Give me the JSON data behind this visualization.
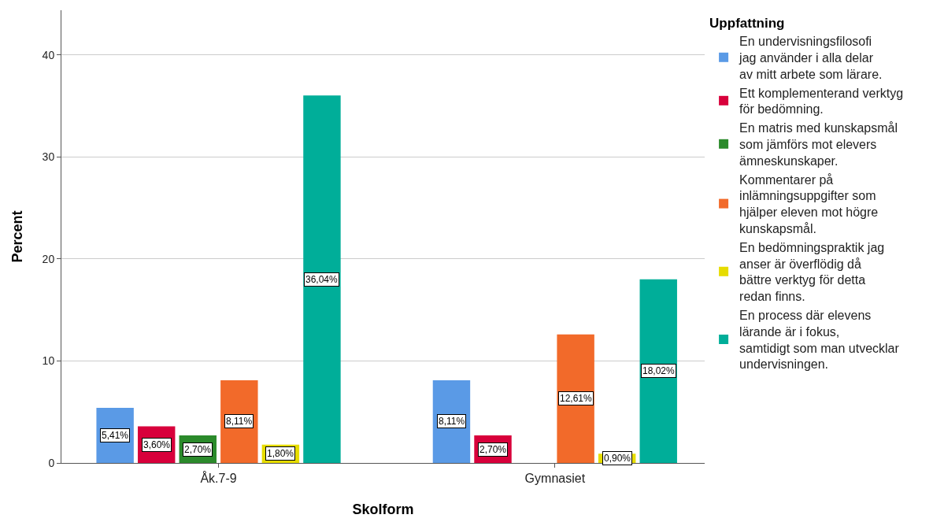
{
  "chart_data": {
    "type": "bar",
    "xlabel": "Skolform",
    "ylabel": "Percent",
    "legend_title": "Uppfattning",
    "categories": [
      "Åk.7-9",
      "Gymnasiet"
    ],
    "series": [
      {
        "name": "En undervisningsfilosofi jag använder i alla delar av mitt arbete som lärare.",
        "color": "#5a9ae6",
        "values": [
          5.41,
          8.11
        ],
        "value_labels": [
          "5,41%",
          "8,11%"
        ]
      },
      {
        "name": "Ett komplementerand verktyg för bedömning.",
        "color": "#d8003b",
        "values": [
          3.6,
          2.7
        ],
        "value_labels": [
          "3,60%",
          "2,70%"
        ]
      },
      {
        "name": "En matris med kunskapsmål som jämförs mot elevers ämneskunskaper.",
        "color": "#2b8a2b",
        "values": [
          2.7,
          null
        ],
        "value_labels": [
          "2,70%",
          null
        ]
      },
      {
        "name": "Kommentarer på inlämningsuppgifter som hjälper eleven mot högre kunskapsmål.",
        "color": "#f26a2a",
        "values": [
          8.11,
          12.61
        ],
        "value_labels": [
          "8,11%",
          "12,61%"
        ]
      },
      {
        "name": "En bedömningspraktik jag anser är överflödig då bättre verktyg för detta redan finns.",
        "color": "#e6dc00",
        "values": [
          1.8,
          0.9
        ],
        "value_labels": [
          "1,80%",
          "0,90%"
        ]
      },
      {
        "name": "En process där elevens lärande är i fokus, samtidigt som man utvecklar undervisningen.",
        "color": "#00ae99",
        "values": [
          36.04,
          18.02
        ],
        "value_labels": [
          "36,04%",
          "18,02%"
        ]
      }
    ],
    "ylim": [
      0,
      44.4
    ],
    "yticks": [
      0,
      10,
      20,
      30,
      40
    ],
    "grid": "y",
    "legend": "right"
  }
}
